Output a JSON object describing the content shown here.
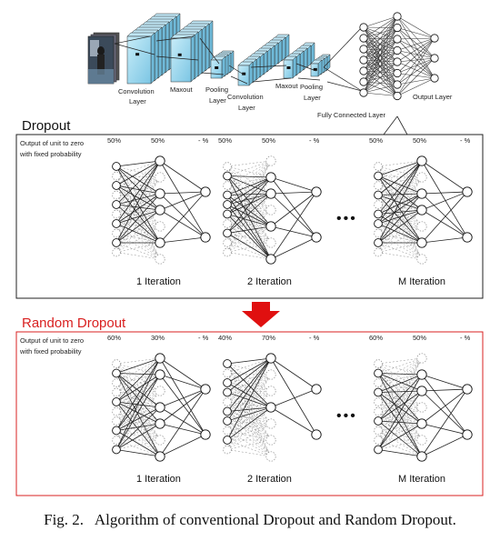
{
  "architecture": {
    "labels": {
      "conv1": "Convolution",
      "layer1": "Layer",
      "maxout1": "Maxout",
      "pooling1": "Pooling",
      "pool_layer1": "Layer",
      "conv2": "Convolution",
      "layer2": "Layer",
      "maxout2": "Maxout",
      "pooling2": "Pooling",
      "pool_layer2": "Layer",
      "fully_connected": "Fully Connected Layer",
      "output": "Output Layer"
    }
  },
  "dropout": {
    "title": "Dropout",
    "note_line1": "Output of unit to zero",
    "note_line2": "with fixed probability",
    "iterations": [
      {
        "label": "1 Iteration",
        "pct1": "50%",
        "pct2": "50%",
        "pct3": "- %"
      },
      {
        "label": "2 Iteration",
        "pct1": "50%",
        "pct2": "50%",
        "pct3": "- %"
      },
      {
        "label": "M Iteration",
        "pct1": "50%",
        "pct2": "50%",
        "pct3": "- %"
      }
    ],
    "ellipsis": "•••"
  },
  "random_dropout": {
    "title": "Random Dropout",
    "note_line1": "Output of unit to zero",
    "note_line2": "with fixed probability",
    "iterations": [
      {
        "label": "1 Iteration",
        "pct1": "60%",
        "pct2": "30%",
        "pct3": "- %"
      },
      {
        "label": "2 Iteration",
        "pct1": "40%",
        "pct2": "70%",
        "pct3": "- %"
      },
      {
        "label": "M Iteration",
        "pct1": "60%",
        "pct2": "50%",
        "pct3": "- %"
      }
    ],
    "ellipsis": "•••"
  },
  "caption": {
    "label": "Fig. 2.",
    "text": "Algorithm of conventional Dropout and Random Dropout."
  },
  "colors": {
    "accent": "#d92020",
    "cube_fill": "#9fd8ee",
    "cube_edge": "#3a3a3a",
    "arrow": "#e01010"
  }
}
